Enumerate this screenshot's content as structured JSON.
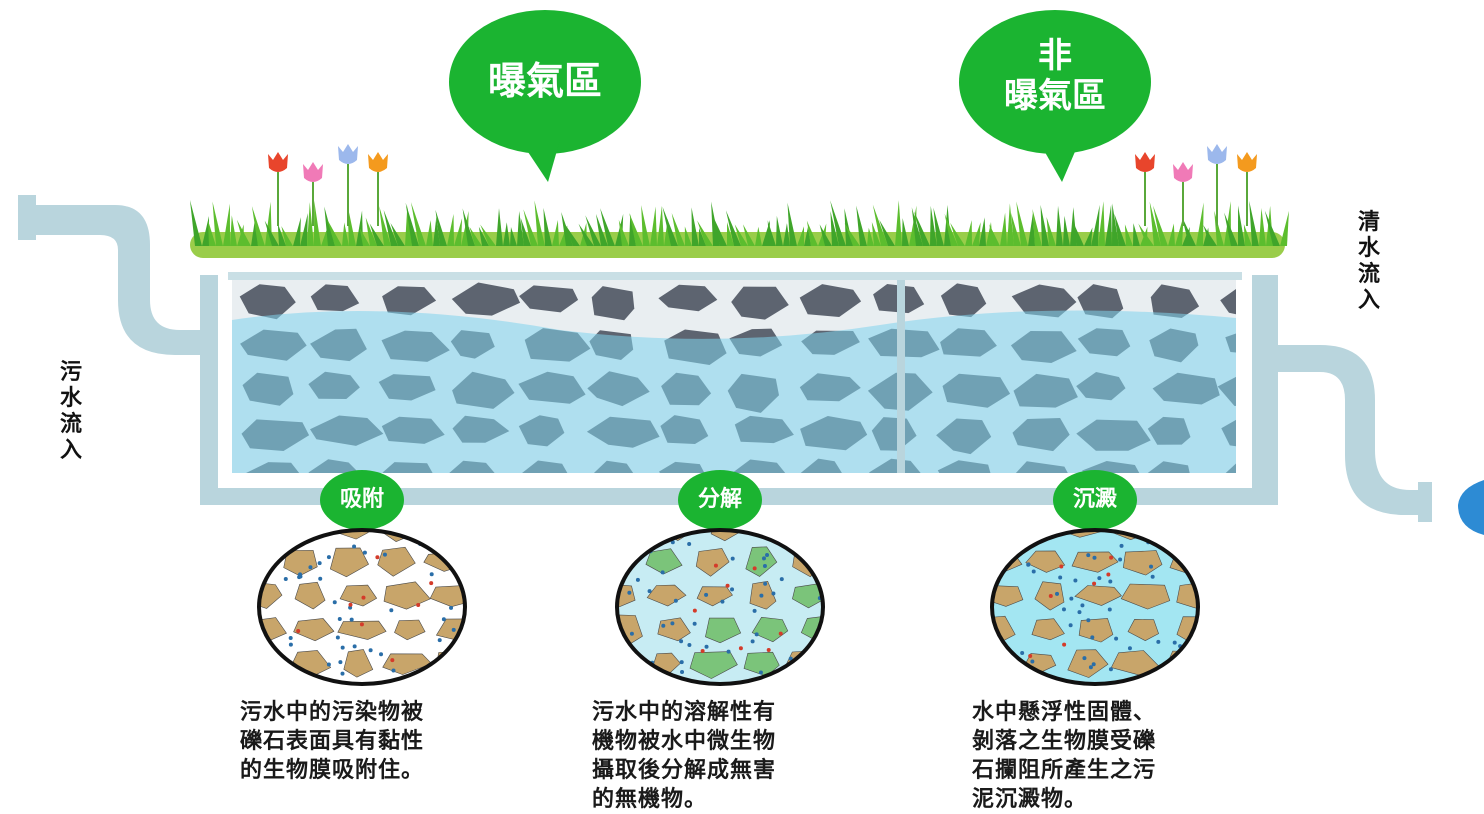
{
  "labels": {
    "inflow": "污水流入",
    "outflow": "清水流入",
    "aerated_zone": "曝氣區",
    "non_aerated_zone": "非\n曝氣區"
  },
  "processes": [
    {
      "badge": "吸附",
      "description": "污水中的污染物被\n礫石表面具有黏性\n的生物膜吸附住。"
    },
    {
      "badge": "分解",
      "description": "污水中的溶解性有\n機物被水中微生物\n攝取後分解成無害\n的無機物。"
    },
    {
      "badge": "沉澱",
      "description": "水中懸浮性固體、\n剝落之生物膜受礫\n石攔阻所產生之污\n泥沉澱物。"
    }
  ],
  "colors": {
    "bubble_green": "#1bb431",
    "grass_green": "#5cbd2e",
    "grass_base": "#9acd4a",
    "pipe": "#b9d5dd",
    "stone": "#5d6470",
    "water": "#7fd4ec",
    "gravel": "#c8a56a",
    "biofilm": "#7bc47a"
  },
  "icons": [
    "tulip-icon",
    "grass-icon",
    "pipe-icon",
    "stone-icon",
    "water-drop-icon"
  ]
}
